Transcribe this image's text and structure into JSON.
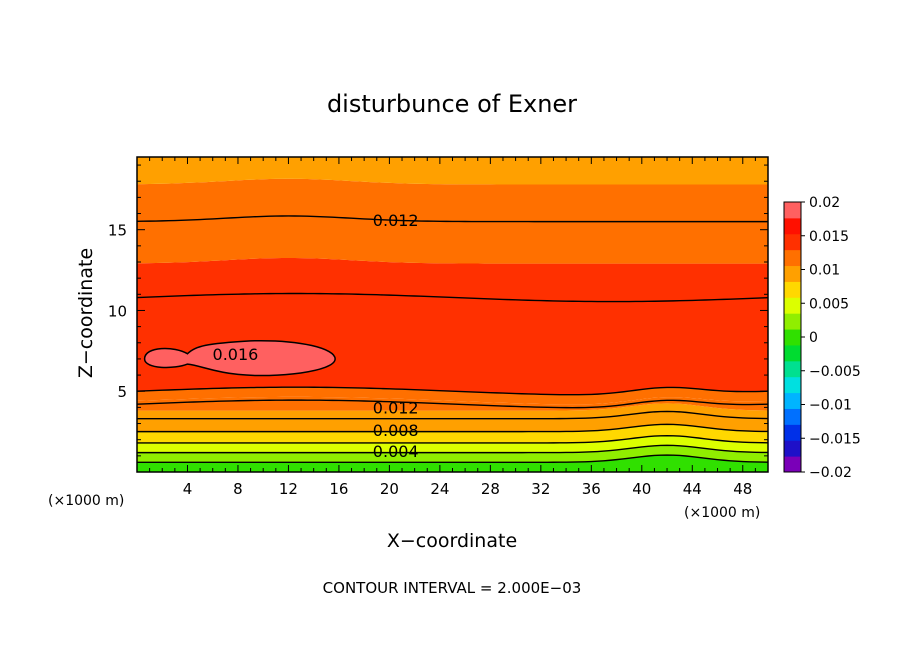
{
  "chart_data": {
    "type": "heatmap",
    "title": "disturbunce of Exner",
    "xlabel": "X−coordinate",
    "ylabel": "Z−coordinate",
    "x_unit_left": "(×1000 m)",
    "x_unit_right": "(×1000 m)",
    "footer": "CONTOUR INTERVAL = 2.000E−03",
    "xlim": [
      0,
      50
    ],
    "ylim": [
      0,
      19.5
    ],
    "x_ticks": [
      4,
      8,
      12,
      16,
      20,
      24,
      28,
      32,
      36,
      40,
      44,
      48
    ],
    "y_ticks": [
      5,
      10,
      15
    ],
    "colorbar": {
      "min": -0.02,
      "max": 0.02,
      "labels": [
        "0.02",
        "0.015",
        "0.01",
        "0.005",
        "0",
        "−0.005",
        "−0.01",
        "−0.015",
        "−0.02"
      ],
      "label_values": [
        0.02,
        0.015,
        0.01,
        0.005,
        0,
        -0.005,
        -0.01,
        -0.015,
        -0.02
      ],
      "colors": [
        "#7a00b8",
        "#1e10c8",
        "#0030e8",
        "#0070ff",
        "#00b4ff",
        "#00e0e0",
        "#00e090",
        "#00dc30",
        "#30e000",
        "#90ee00",
        "#dcff00",
        "#ffd800",
        "#ffa000",
        "#ff7000",
        "#ff3000",
        "#ff1000",
        "#ff6060"
      ]
    },
    "contour_labels": [
      {
        "text": "0.012",
        "x": 20.5,
        "z": 15.6
      },
      {
        "text": "0.016",
        "x": 7.8,
        "z": 7.3
      },
      {
        "text": "0.012",
        "x": 20.5,
        "z": 4.0
      },
      {
        "text": "0.008",
        "x": 20.5,
        "z": 2.6
      },
      {
        "text": "0.004",
        "x": 20.5,
        "z": 1.3
      }
    ],
    "profile": [
      {
        "z": 0.0,
        "value": 0.0
      },
      {
        "z": 0.6,
        "value": 0.002
      },
      {
        "z": 1.2,
        "value": 0.004
      },
      {
        "z": 1.8,
        "value": 0.006
      },
      {
        "z": 2.5,
        "value": 0.008
      },
      {
        "z": 3.3,
        "value": 0.01
      },
      {
        "z": 4.2,
        "value": 0.012
      },
      {
        "z": 5.3,
        "value": 0.014
      },
      {
        "z": 7.0,
        "value": 0.0155
      },
      {
        "z": 9.5,
        "value": 0.0148
      },
      {
        "z": 11.0,
        "value": 0.014
      },
      {
        "z": 13.0,
        "value": 0.013
      },
      {
        "z": 15.5,
        "value": 0.012
      },
      {
        "z": 17.5,
        "value": 0.011
      },
      {
        "z": 19.5,
        "value": 0.01
      }
    ],
    "bands": [
      {
        "zlo": 0.0,
        "zhi": 0.6,
        "value": 0.001
      },
      {
        "zlo": 0.6,
        "zhi": 1.2,
        "value": 0.003
      },
      {
        "zlo": 1.2,
        "zhi": 1.8,
        "value": 0.005
      },
      {
        "zlo": 1.8,
        "zhi": 2.5,
        "value": 0.007
      },
      {
        "zlo": 2.5,
        "zhi": 3.3,
        "value": 0.009
      },
      {
        "zlo": 3.3,
        "zhi": 3.8,
        "value": 0.0105
      },
      {
        "zlo": 3.8,
        "zhi": 4.4,
        "value": 0.0115
      },
      {
        "zlo": 4.4,
        "zhi": 5.0,
        "value": 0.0128
      },
      {
        "zlo": 5.0,
        "zhi": 10.8,
        "value": 0.0145
      },
      {
        "zlo": 10.8,
        "zhi": 12.9,
        "value": 0.0135
      },
      {
        "zlo": 12.9,
        "zhi": 15.5,
        "value": 0.0125
      },
      {
        "zlo": 15.5,
        "zhi": 17.8,
        "value": 0.0115
      },
      {
        "zlo": 17.8,
        "zhi": 19.5,
        "value": 0.0105
      }
    ],
    "contour_levels_z": [
      0.6,
      1.2,
      1.8,
      2.5,
      3.3,
      4.2,
      5.0,
      10.8,
      15.5
    ],
    "blob_016": {
      "x0": 0.6,
      "x1": 15.7,
      "zc": 7.0,
      "half_height": 0.8
    }
  }
}
